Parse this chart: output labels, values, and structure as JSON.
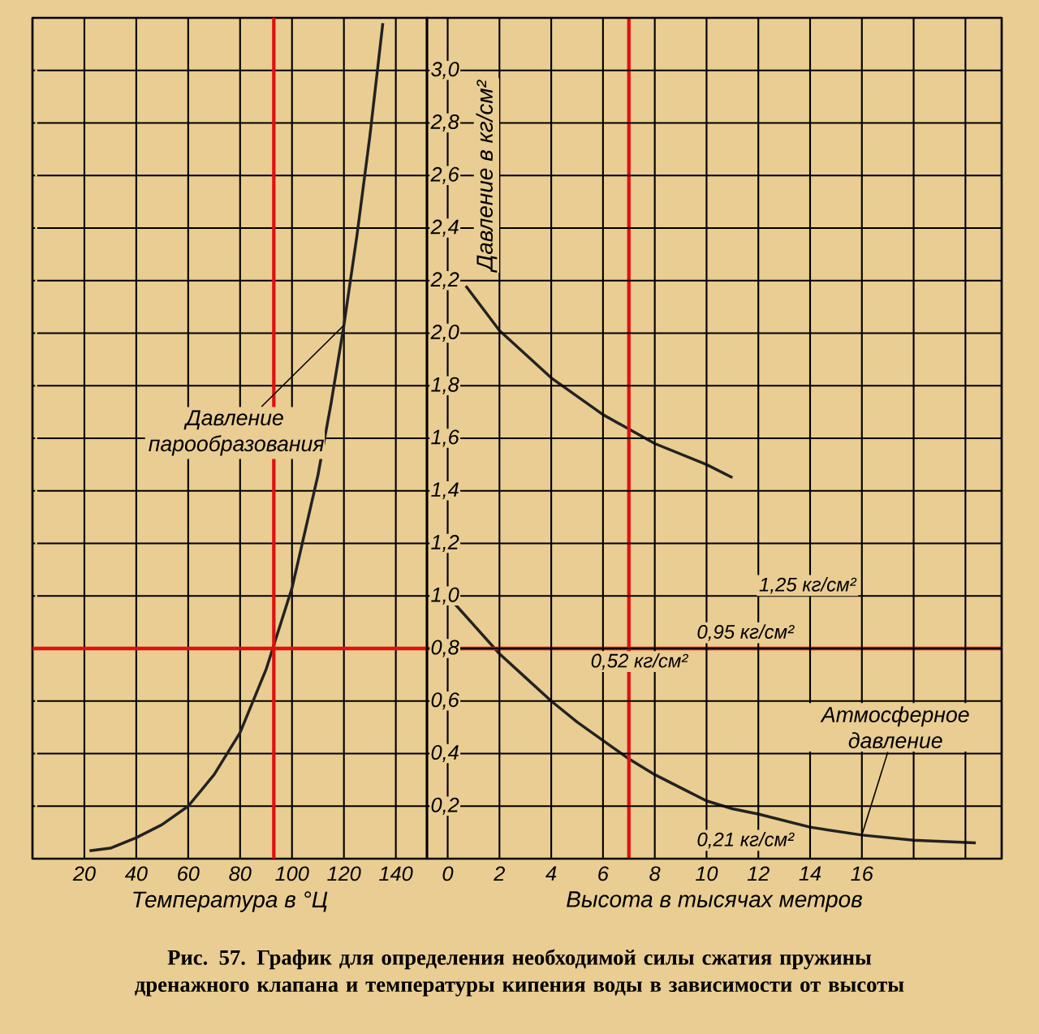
{
  "chart_data": [
    {
      "type": "line",
      "xlabel": "Температура в °Ц",
      "xlim": [
        0,
        152
      ],
      "xticks": [
        20,
        40,
        60,
        80,
        100,
        120,
        140
      ],
      "ylim": [
        0,
        3.2
      ],
      "yticks": [
        0.2,
        0.4,
        0.6,
        0.8,
        1.0,
        1.2,
        1.4,
        1.6,
        1.8,
        2.0,
        2.2,
        2.4,
        2.6,
        2.8,
        3.0
      ],
      "tick_labels": "x",
      "grid": true,
      "series": [
        {
          "name": "Давление парообразования",
          "color": "#222222",
          "x": [
            22,
            30,
            40,
            50,
            60,
            70,
            80,
            90,
            100,
            110,
            115,
            120,
            125,
            130,
            135
          ],
          "values": [
            0.03,
            0.04,
            0.08,
            0.13,
            0.2,
            0.32,
            0.48,
            0.72,
            1.03,
            1.46,
            1.73,
            2.03,
            2.37,
            2.75,
            3.18
          ]
        }
      ],
      "ref_lines": [
        {
          "axis": "x",
          "value": 93,
          "color": "#e01010"
        },
        {
          "axis": "y",
          "value": 0.8,
          "color": "#e01010"
        }
      ]
    },
    {
      "type": "line",
      "xlabel": "Высота в тысячах метров",
      "ylabel": "Давление в кг/см²",
      "xlim": [
        -0.8,
        21.4
      ],
      "xticks": [
        0,
        2,
        4,
        6,
        8,
        10,
        12,
        14,
        16,
        {
          "value": 18,
          "label": null
        },
        {
          "value": 20,
          "label": null
        }
      ],
      "ylim": [
        0,
        3.2
      ],
      "yticks": [
        {
          "value": 0.2,
          "label": "0,2"
        },
        {
          "value": 0.4,
          "label": "0,4"
        },
        {
          "value": 0.6,
          "label": "0,6"
        },
        {
          "value": 0.8,
          "label": "0,8"
        },
        {
          "value": 1.0,
          "label": "1,0"
        },
        {
          "value": 1.2,
          "label": "1,2"
        },
        {
          "value": 1.4,
          "label": "1,4"
        },
        {
          "value": 1.6,
          "label": "1,6"
        },
        {
          "value": 1.8,
          "label": "1,8"
        },
        {
          "value": 2.0,
          "label": "2,0"
        },
        {
          "value": 2.2,
          "label": "2,2"
        },
        {
          "value": 2.4,
          "label": "2,4"
        },
        {
          "value": 2.6,
          "label": "2,6"
        },
        {
          "value": 2.8,
          "label": "2,8"
        },
        {
          "value": 3.0,
          "label": "3,0"
        }
      ],
      "grid": true,
      "series": [
        {
          "color": "#222222",
          "x": [
            0.7,
            2,
            4,
            6,
            8,
            10,
            11
          ],
          "values": [
            2.18,
            2.01,
            1.83,
            1.69,
            1.58,
            1.5,
            1.45
          ]
        },
        {
          "name": "Атмосферное давление",
          "color": "#222222",
          "x": [
            0,
            1,
            2,
            3,
            4,
            5,
            6,
            7,
            8,
            9,
            10,
            11,
            12,
            14,
            16,
            18,
            20.4
          ],
          "values": [
            1.0,
            0.89,
            0.78,
            0.69,
            0.6,
            0.52,
            0.45,
            0.38,
            0.32,
            0.27,
            0.22,
            0.19,
            0.17,
            0.12,
            0.09,
            0.07,
            0.06
          ]
        }
      ],
      "ref_lines": [
        {
          "axis": "x",
          "value": 7,
          "color": "#e01010"
        },
        {
          "axis": "y",
          "value": 0.8,
          "color": "#e01010"
        }
      ],
      "annotations": [
        "1,25 кг/см²",
        "0,95 кг/см²",
        "0,52 кг/см²",
        "0,21 кг/см²",
        "Рис. 57. График для определения необходимой силы сжатия пружины дренажного клапана и температуры кипения воды в зависимости от высоты"
      ]
    }
  ]
}
